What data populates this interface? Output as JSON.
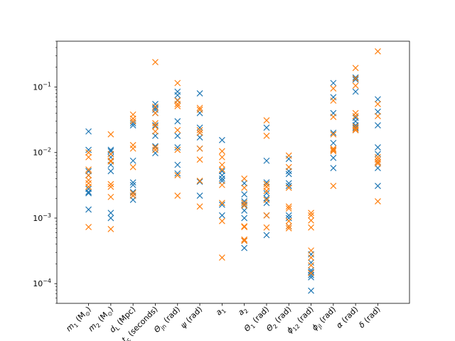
{
  "chart_data": {
    "type": "scatter",
    "title": "",
    "xlabel": "",
    "ylabel": "",
    "y_scale": "log",
    "ylim": [
      5e-05,
      0.5
    ],
    "grid": false,
    "legend": "none",
    "marker": "x",
    "categories": [
      {
        "main": "m",
        "sub": "1",
        "suffix": " (M",
        "tail": ")",
        "sun": true
      },
      {
        "main": "m",
        "sub": "2",
        "suffix": " (M",
        "tail": ")",
        "sun": true
      },
      {
        "main": "d",
        "sub": "L",
        "suffix": " (Mpc)",
        "tail": "",
        "sun": false
      },
      {
        "main": "t",
        "sub": "c",
        "suffix": " (seconds)",
        "tail": "",
        "sun": false
      },
      {
        "main": "Θ",
        "sub": "jn",
        "suffix": " (rad)",
        "tail": "",
        "sun": false
      },
      {
        "main": "ψ",
        "sub": "",
        "suffix": " (rad)",
        "tail": "",
        "sun": false
      },
      {
        "main": "a",
        "sub": "1",
        "suffix": "",
        "tail": "",
        "sun": false
      },
      {
        "main": "a",
        "sub": "2",
        "suffix": "",
        "tail": "",
        "sun": false
      },
      {
        "main": "Θ",
        "sub": "1",
        "suffix": " (rad)",
        "tail": "",
        "sun": false
      },
      {
        "main": "Θ",
        "sub": "2",
        "suffix": " (rad)",
        "tail": "",
        "sun": false
      },
      {
        "main": "ϕ",
        "sub": "12",
        "suffix": " (rad)",
        "tail": "",
        "sun": false
      },
      {
        "main": "ϕ",
        "sub": "jl",
        "suffix": " (rad)",
        "tail": "",
        "sun": false
      },
      {
        "main": "α",
        "sub": "",
        "suffix": " (rad)",
        "tail": "",
        "sun": false
      },
      {
        "main": "δ",
        "sub": "",
        "suffix": " (rad)",
        "tail": "",
        "sun": false
      }
    ],
    "y_ticks": [
      {
        "value": 0.0001,
        "base": "10",
        "exp": "−4"
      },
      {
        "value": 0.001,
        "base": "10",
        "exp": "−3"
      },
      {
        "value": 0.01,
        "base": "10",
        "exp": "−2"
      },
      {
        "value": 0.1,
        "base": "10",
        "exp": "−1"
      }
    ],
    "series": [
      {
        "color": "#1f77b4",
        "values": [
          [
            0.021,
            0.011,
            0.0052,
            0.0045,
            0.0028,
            0.0025,
            0.0024,
            0.00135
          ],
          [
            0.011,
            0.0105,
            0.0095,
            0.0085,
            0.0065,
            0.0052,
            0.0012,
            0.001
          ],
          [
            0.028,
            0.026,
            0.0075,
            0.0035,
            0.0032,
            0.0025,
            0.0022,
            0.0019
          ],
          [
            0.055,
            0.048,
            0.045,
            0.04,
            0.026,
            0.018,
            0.0125,
            0.0098
          ],
          [
            0.085,
            0.075,
            0.063,
            0.03,
            0.018,
            0.012,
            0.0065,
            0.0048
          ],
          [
            0.08,
            0.04,
            0.024,
            0.02,
            0.017,
            0.0115,
            0.0036,
            0.0022
          ],
          [
            0.0155,
            0.0052,
            0.0045,
            0.004,
            0.0037,
            0.0016,
            0.0011
          ],
          [
            0.0034,
            0.0023,
            0.0018,
            0.0016,
            0.0013,
            0.001,
            0.00045,
            0.00035
          ],
          [
            0.024,
            0.0075,
            0.0035,
            0.0024,
            0.002,
            0.0017,
            0.0011,
            0.00055
          ],
          [
            0.008,
            0.0052,
            0.0047,
            0.0034,
            0.0031,
            0.0011,
            0.001,
            0.00075
          ],
          [
            0.00028,
            0.00021,
            0.00016,
            0.00015,
            0.000135,
            0.000125,
            7.8e-05
          ],
          [
            0.115,
            0.07,
            0.04,
            0.02,
            0.014,
            0.011,
            0.0083,
            0.0058
          ],
          [
            0.14,
            0.13,
            0.085,
            0.034,
            0.03,
            0.026,
            0.024,
            0.022
          ],
          [
            0.065,
            0.042,
            0.026,
            0.012,
            0.0095,
            0.0072,
            0.0058,
            0.0031
          ]
        ]
      },
      {
        "color": "#ff7f0e",
        "values": [
          [
            0.01,
            0.0085,
            0.0055,
            0.0045,
            0.0038,
            0.0034,
            0.003,
            0.00073
          ],
          [
            0.019,
            0.0095,
            0.0075,
            0.0073,
            0.0033,
            0.003,
            0.0021,
            0.00068
          ],
          [
            0.038,
            0.033,
            0.03,
            0.013,
            0.0115,
            0.006,
            0.0024,
            0.0022
          ],
          [
            0.24,
            0.05,
            0.04,
            0.028,
            0.025,
            0.021,
            0.012,
            0.011
          ],
          [
            0.115,
            0.062,
            0.055,
            0.051,
            0.022,
            0.011,
            0.0045,
            0.0022
          ],
          [
            0.048,
            0.045,
            0.022,
            0.02,
            0.0115,
            0.0078,
            0.0037,
            0.0015
          ],
          [
            0.0105,
            0.0085,
            0.0065,
            0.0055,
            0.0032,
            0.0017,
            0.0009,
            0.00025
          ],
          [
            0.004,
            0.0029,
            0.0017,
            0.00155,
            0.00075,
            0.00073,
            0.00047,
            0.00045
          ],
          [
            0.031,
            0.018,
            0.0033,
            0.003,
            0.0026,
            0.0019,
            0.0011,
            0.00072
          ],
          [
            0.009,
            0.006,
            0.0029,
            0.0015,
            0.0014,
            0.0009,
            0.00075,
            0.0007
          ],
          [
            0.0012,
            0.0011,
            0.00092,
            0.00072,
            0.00032,
            0.00025,
            0.00019,
            0.000145
          ],
          [
            0.095,
            0.062,
            0.035,
            0.019,
            0.0115,
            0.011,
            0.0105,
            0.0031
          ],
          [
            0.195,
            0.135,
            0.105,
            0.04,
            0.036,
            0.025,
            0.023,
            0.022
          ],
          [
            0.35,
            0.055,
            0.036,
            0.0085,
            0.0078,
            0.0072,
            0.0068,
            0.0018
          ]
        ]
      }
    ]
  }
}
